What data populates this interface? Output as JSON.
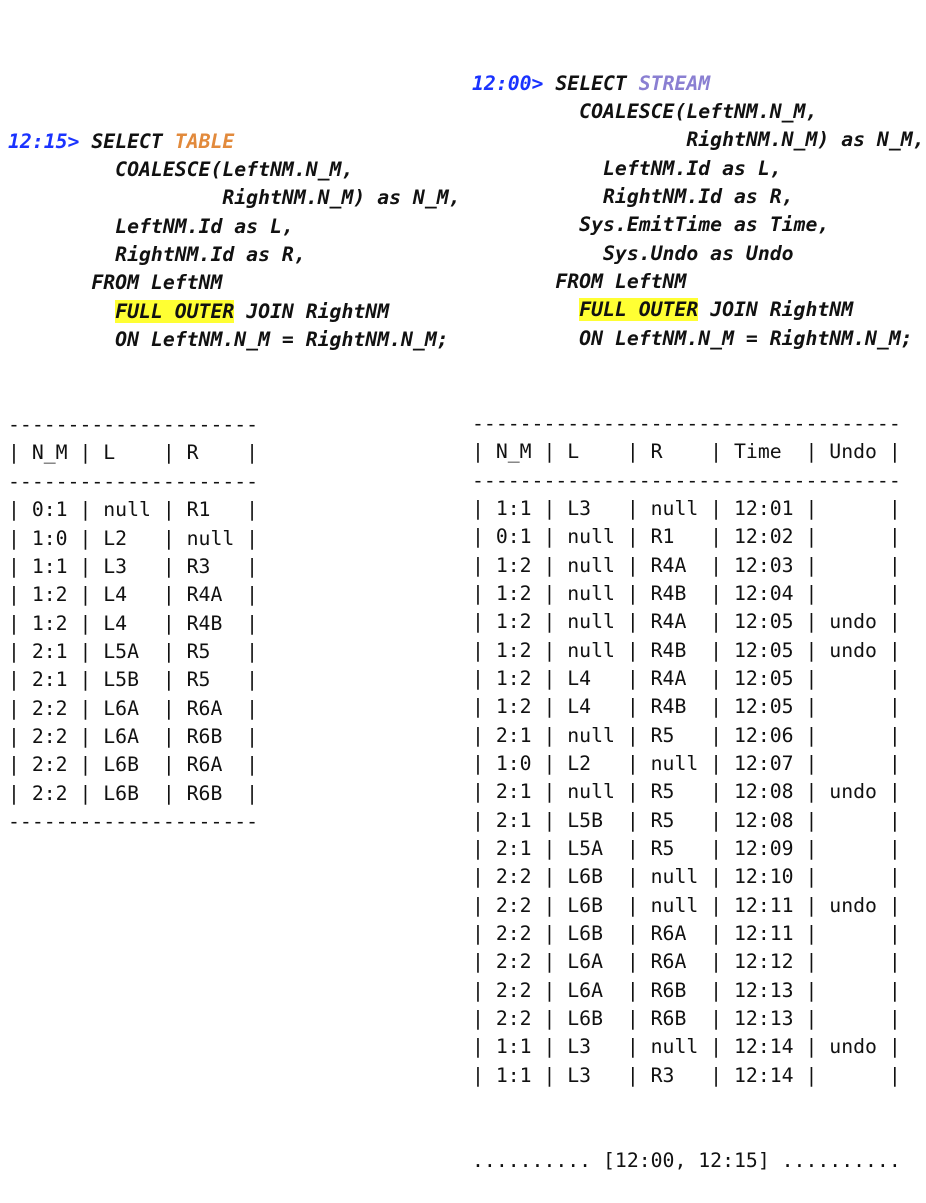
{
  "colors": {
    "prompt": "#1a33ff",
    "table_keyword": "#e28a3c",
    "stream_keyword": "#8a7fd2",
    "highlight": "#ffff33"
  },
  "left": {
    "code": [
      [
        {
          "t": "12:15> ",
          "s": "prompt"
        },
        {
          "t": "SELECT "
        },
        {
          "t": "TABLE",
          "s": "table"
        }
      ],
      [
        {
          "t": "         COALESCE(LeftNM.N_M,"
        }
      ],
      [
        {
          "t": "                  RightNM.N_M) as N_M,"
        }
      ],
      [
        {
          "t": "         LeftNM.Id as L,"
        }
      ],
      [
        {
          "t": "         RightNM.Id as R,"
        }
      ],
      [
        {
          "t": "       FROM LeftNM"
        }
      ],
      [
        {
          "t": "         "
        },
        {
          "t": "FULL OUTER",
          "s": "hl"
        },
        {
          "t": " JOIN RightNM"
        }
      ],
      [
        {
          "t": "         ON LeftNM.N_M = RightNM.N_M;"
        }
      ]
    ],
    "table": {
      "headers": [
        "N_M",
        "L",
        "R"
      ],
      "widths": [
        3,
        4,
        4
      ],
      "rows": [
        [
          "0:1",
          "null",
          "R1"
        ],
        [
          "1:0",
          "L2",
          "null"
        ],
        [
          "1:1",
          "L3",
          "R3"
        ],
        [
          "1:2",
          "L4",
          "R4A"
        ],
        [
          "1:2",
          "L4",
          "R4B"
        ],
        [
          "2:1",
          "L5A",
          "R5"
        ],
        [
          "2:1",
          "L5B",
          "R5"
        ],
        [
          "2:2",
          "L6A",
          "R6A"
        ],
        [
          "2:2",
          "L6A",
          "R6B"
        ],
        [
          "2:2",
          "L6B",
          "R6A"
        ],
        [
          "2:2",
          "L6B",
          "R6B"
        ]
      ]
    }
  },
  "right": {
    "code": [
      [
        {
          "t": "12:00> ",
          "s": "prompt"
        },
        {
          "t": "SELECT "
        },
        {
          "t": "STREAM",
          "s": "stream"
        }
      ],
      [
        {
          "t": "         COALESCE(LeftNM.N_M,"
        }
      ],
      [
        {
          "t": "                  RightNM.N_M) as N_M,"
        }
      ],
      [
        {
          "t": "           LeftNM.Id as L,"
        }
      ],
      [
        {
          "t": "           RightNM.Id as R,"
        }
      ],
      [
        {
          "t": "         Sys.EmitTime as Time,"
        }
      ],
      [
        {
          "t": "           Sys.Undo as Undo"
        }
      ],
      [
        {
          "t": "       FROM LeftNM"
        }
      ],
      [
        {
          "t": "         "
        },
        {
          "t": "FULL OUTER",
          "s": "hl"
        },
        {
          "t": " JOIN RightNM"
        }
      ],
      [
        {
          "t": "         ON LeftNM.N_M = RightNM.N_M;"
        }
      ]
    ],
    "table": {
      "headers": [
        "N_M",
        "L",
        "R",
        "Time",
        "Undo"
      ],
      "widths": [
        3,
        4,
        4,
        5,
        4
      ],
      "rows": [
        [
          "1:1",
          "L3",
          "null",
          "12:01",
          ""
        ],
        [
          "0:1",
          "null",
          "R1",
          "12:02",
          ""
        ],
        [
          "1:2",
          "null",
          "R4A",
          "12:03",
          ""
        ],
        [
          "1:2",
          "null",
          "R4B",
          "12:04",
          ""
        ],
        [
          "1:2",
          "null",
          "R4A",
          "12:05",
          "undo"
        ],
        [
          "1:2",
          "null",
          "R4B",
          "12:05",
          "undo"
        ],
        [
          "1:2",
          "L4",
          "R4A",
          "12:05",
          ""
        ],
        [
          "1:2",
          "L4",
          "R4B",
          "12:05",
          ""
        ],
        [
          "2:1",
          "null",
          "R5",
          "12:06",
          ""
        ],
        [
          "1:0",
          "L2",
          "null",
          "12:07",
          ""
        ],
        [
          "2:1",
          "null",
          "R5",
          "12:08",
          "undo"
        ],
        [
          "2:1",
          "L5B",
          "R5",
          "12:08",
          ""
        ],
        [
          "2:1",
          "L5A",
          "R5",
          "12:09",
          ""
        ],
        [
          "2:2",
          "L6B",
          "null",
          "12:10",
          ""
        ],
        [
          "2:2",
          "L6B",
          "null",
          "12:11",
          "undo"
        ],
        [
          "2:2",
          "L6B",
          "R6A",
          "12:11",
          ""
        ],
        [
          "2:2",
          "L6A",
          "R6A",
          "12:12",
          ""
        ],
        [
          "2:2",
          "L6A",
          "R6B",
          "12:13",
          ""
        ],
        [
          "2:2",
          "L6B",
          "R6B",
          "12:13",
          ""
        ],
        [
          "1:1",
          "L3",
          "null",
          "12:14",
          "undo"
        ],
        [
          "1:1",
          "L3",
          "R3",
          "12:14",
          ""
        ]
      ],
      "footer": ".......... [12:00, 12:15] .........."
    }
  }
}
